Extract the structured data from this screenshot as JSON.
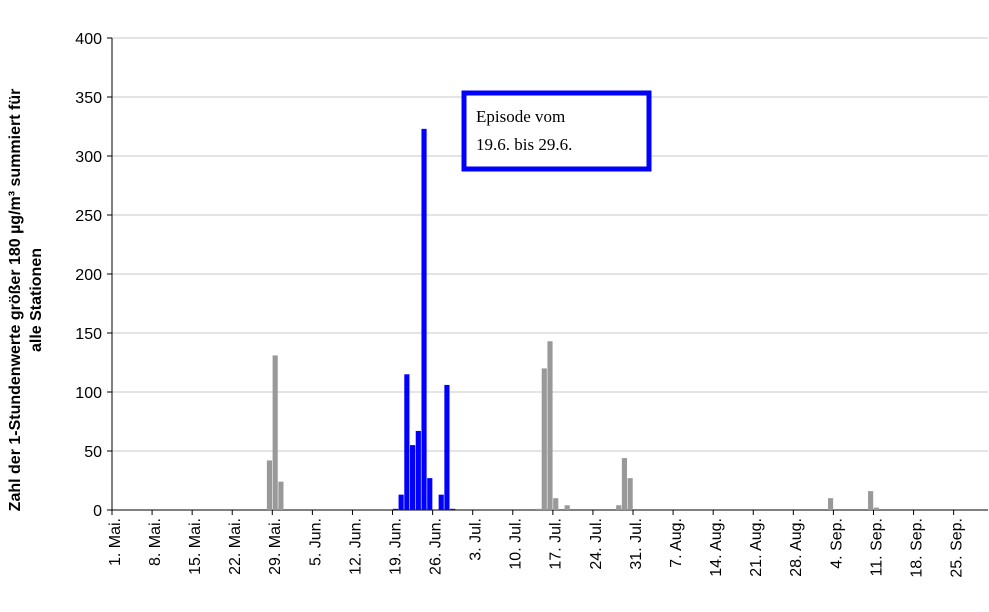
{
  "chart_data": {
    "type": "bar",
    "ylabel": [
      "Zahl der 1-Stundenwerte größer 180 µg/m³ summiert für",
      "alle Stationen"
    ],
    "annotation": [
      "Episode vom",
      "19.6. bis 29.6."
    ],
    "annotation_color": "#0000ff",
    "categories": [
      "1. Mai.",
      null,
      null,
      null,
      null,
      null,
      null,
      "8. Mai.",
      null,
      null,
      null,
      null,
      null,
      null,
      "15. Mai.",
      null,
      null,
      null,
      null,
      null,
      null,
      "22. Mai.",
      null,
      null,
      null,
      null,
      null,
      null,
      "29. Mai.",
      null,
      null,
      null,
      null,
      null,
      null,
      "5. Jun.",
      null,
      null,
      null,
      null,
      null,
      null,
      "12. Jun.",
      null,
      null,
      null,
      null,
      null,
      null,
      "19. Jun.",
      null,
      null,
      null,
      null,
      null,
      null,
      "26. Jun.",
      null,
      null,
      null,
      null,
      null,
      null,
      "3. Jul.",
      null,
      null,
      null,
      null,
      null,
      null,
      "10. Jul.",
      null,
      null,
      null,
      null,
      null,
      null,
      "17. Jul.",
      null,
      null,
      null,
      null,
      null,
      null,
      "24. Jul.",
      null,
      null,
      null,
      null,
      null,
      null,
      "31. Jul.",
      null,
      null,
      null,
      null,
      null,
      null,
      "7. Aug.",
      null,
      null,
      null,
      null,
      null,
      null,
      "14. Aug.",
      null,
      null,
      null,
      null,
      null,
      null,
      "21. Aug.",
      null,
      null,
      null,
      null,
      null,
      null,
      "28. Aug.",
      null,
      null,
      null,
      null,
      null,
      null,
      "4. Sep.",
      null,
      null,
      null,
      null,
      null,
      null,
      "11. Sep.",
      null,
      null,
      null,
      null,
      null,
      null,
      "18. Sep.",
      null,
      null,
      null,
      null,
      null,
      null,
      "25. Sep.",
      null,
      null,
      null,
      null,
      null
    ],
    "values": [
      0,
      0,
      0,
      0,
      0,
      0,
      0,
      0,
      0,
      0,
      0,
      0,
      0,
      0,
      0,
      0,
      0,
      0,
      0,
      0,
      0,
      0,
      0,
      0,
      0,
      0,
      0,
      42,
      131,
      24,
      0,
      0,
      0,
      0,
      0,
      0,
      0,
      0,
      0,
      0,
      0,
      0,
      0,
      0,
      0,
      0,
      0,
      0,
      0,
      1,
      13,
      115,
      55,
      67,
      323,
      27,
      0,
      13,
      106,
      1,
      0,
      0,
      0,
      0,
      0,
      0,
      0,
      0,
      0,
      0,
      0,
      0,
      0,
      0,
      1,
      120,
      143,
      10,
      0,
      4,
      0,
      0,
      0,
      0,
      0,
      0,
      0,
      0,
      4,
      44,
      27,
      0,
      0,
      0,
      0,
      0,
      0,
      0,
      0,
      0,
      0,
      0,
      0,
      0,
      0,
      0,
      0,
      0,
      0,
      0,
      0,
      0,
      0,
      0,
      0,
      0,
      0,
      0,
      0,
      0,
      0,
      0,
      0,
      0,
      0,
      10,
      0,
      0,
      0,
      0,
      0,
      0,
      16,
      2,
      0,
      0,
      0,
      0,
      0,
      0,
      0,
      0,
      0,
      0,
      0,
      0,
      0,
      0,
      0,
      0,
      0,
      0,
      0
    ],
    "colors": [
      "#999",
      "#999",
      "#999",
      "#999",
      "#999",
      "#999",
      "#999",
      "#999",
      "#999",
      "#999",
      "#999",
      "#999",
      "#999",
      "#999",
      "#999",
      "#999",
      "#999",
      "#999",
      "#999",
      "#999",
      "#999",
      "#999",
      "#999",
      "#999",
      "#999",
      "#999",
      "#999",
      "#999",
      "#999",
      "#999",
      "#999",
      "#999",
      "#999",
      "#999",
      "#999",
      "#999",
      "#999",
      "#999",
      "#999",
      "#999",
      "#999",
      "#999",
      "#999",
      "#999",
      "#999",
      "#999",
      "#999",
      "#999",
      "#999",
      "#00f",
      "#00f",
      "#00f",
      "#00f",
      "#00f",
      "#00f",
      "#00f",
      "#00f",
      "#00f",
      "#00f",
      "#00f",
      "#999",
      "#999",
      "#999",
      "#999",
      "#999",
      "#999",
      "#999",
      "#999",
      "#999",
      "#999",
      "#999",
      "#999",
      "#999",
      "#999",
      "#999",
      "#999",
      "#999",
      "#999",
      "#999",
      "#999",
      "#999",
      "#999",
      "#999",
      "#999",
      "#999",
      "#999",
      "#999",
      "#999",
      "#999",
      "#999",
      "#999",
      "#999",
      "#999",
      "#999",
      "#999",
      "#999",
      "#999",
      "#999",
      "#999",
      "#999",
      "#999",
      "#999",
      "#999",
      "#999",
      "#999",
      "#999",
      "#999",
      "#999",
      "#999",
      "#999",
      "#999",
      "#999",
      "#999",
      "#999",
      "#999",
      "#999",
      "#999",
      "#999",
      "#999",
      "#999",
      "#999",
      "#999",
      "#999",
      "#999",
      "#999",
      "#999",
      "#999",
      "#999",
      "#999",
      "#999",
      "#999",
      "#999",
      "#999",
      "#999",
      "#999",
      "#999",
      "#999",
      "#999",
      "#999",
      "#999",
      "#999",
      "#999",
      "#999",
      "#999",
      "#999",
      "#999",
      "#999",
      "#999",
      "#999",
      "#999",
      "#999",
      "#999",
      "#999"
    ],
    "ylim": [
      0,
      400
    ],
    "yticks": [
      0,
      50,
      100,
      150,
      200,
      250,
      300,
      350,
      400
    ],
    "grid": true
  }
}
